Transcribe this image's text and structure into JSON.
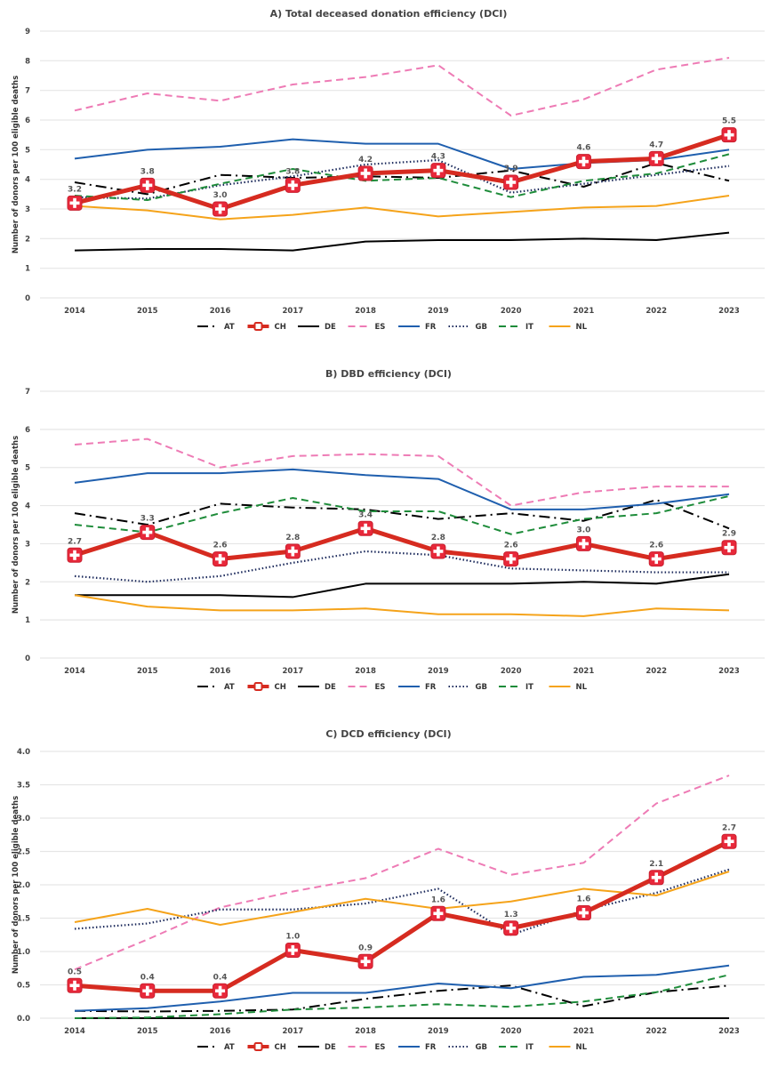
{
  "chart_data": [
    {
      "type": "line",
      "title": "A) Total deceased donation efficiency (DCI)",
      "ylabel": "Number of donors per 100 eligible deaths",
      "xlabel": "",
      "ylim": [
        0,
        9
      ],
      "yticks": [
        0,
        1,
        2,
        3,
        4,
        5,
        6,
        7,
        8,
        9
      ],
      "ytick_decimals": 0,
      "grid": true,
      "legend_position": "bottom",
      "x": [
        "2014",
        "2015",
        "2016",
        "2017",
        "2018",
        "2019",
        "2020",
        "2021",
        "2022",
        "2023"
      ],
      "series": [
        {
          "name": "AT",
          "color": "#000000",
          "style": "dashdot",
          "values": [
            3.9,
            3.5,
            4.15,
            4.05,
            4.1,
            4.05,
            4.3,
            3.75,
            4.55,
            3.95
          ]
        },
        {
          "name": "CH",
          "color": "#d62b20",
          "style": "bold-marker",
          "values": [
            3.2,
            3.8,
            3.0,
            3.8,
            4.2,
            4.3,
            3.9,
            4.6,
            4.7,
            5.5
          ],
          "data_labels": [
            "3.2",
            "3.8",
            "3.0",
            "3.8",
            "4.2",
            "4.3",
            "3.9",
            "4.6",
            "4.7",
            "5.5"
          ]
        },
        {
          "name": "DE",
          "color": "#000000",
          "style": "solid",
          "values": [
            1.6,
            1.65,
            1.65,
            1.6,
            1.9,
            1.95,
            1.95,
            2.0,
            1.95,
            2.2
          ]
        },
        {
          "name": "ES",
          "color": "#ee7bb5",
          "style": "dashed",
          "values": [
            6.32,
            6.9,
            6.65,
            7.2,
            7.45,
            7.85,
            6.15,
            6.7,
            7.7,
            8.1
          ]
        },
        {
          "name": "FR",
          "color": "#1f5fae",
          "style": "solid",
          "values": [
            4.7,
            5.0,
            5.1,
            5.35,
            5.2,
            5.2,
            4.35,
            4.55,
            4.65,
            5.0
          ]
        },
        {
          "name": "GB",
          "color": "#1c2a5c",
          "style": "dotted",
          "values": [
            3.4,
            3.35,
            3.8,
            4.1,
            4.5,
            4.65,
            3.55,
            3.85,
            4.15,
            4.45
          ]
        },
        {
          "name": "IT",
          "color": "#1e8c3a",
          "style": "dashed",
          "values": [
            3.45,
            3.3,
            3.85,
            4.35,
            3.95,
            4.05,
            3.4,
            3.95,
            4.2,
            4.85
          ]
        },
        {
          "name": "NL",
          "color": "#f5a31a",
          "style": "solid",
          "values": [
            3.1,
            2.95,
            2.65,
            2.8,
            3.05,
            2.75,
            2.9,
            3.05,
            3.1,
            3.45
          ]
        }
      ]
    },
    {
      "type": "line",
      "title": "B) DBD efficiency (DCI)",
      "ylabel": "Number of donors per 100 eligible deaths",
      "xlabel": "",
      "ylim": [
        0,
        7
      ],
      "yticks": [
        0,
        1,
        2,
        3,
        4,
        5,
        6,
        7
      ],
      "ytick_decimals": 0,
      "grid": true,
      "legend_position": "bottom",
      "x": [
        "2014",
        "2015",
        "2016",
        "2017",
        "2018",
        "2019",
        "2020",
        "2021",
        "2022",
        "2023"
      ],
      "series": [
        {
          "name": "AT",
          "color": "#000000",
          "style": "dashdot",
          "values": [
            3.8,
            3.5,
            4.05,
            3.95,
            3.9,
            3.65,
            3.8,
            3.6,
            4.15,
            3.4
          ]
        },
        {
          "name": "CH",
          "color": "#d62b20",
          "style": "bold-marker",
          "values": [
            2.7,
            3.3,
            2.6,
            2.8,
            3.4,
            2.8,
            2.6,
            3.0,
            2.6,
            2.9
          ],
          "data_labels": [
            "2.7",
            "3.3",
            "2.6",
            "2.8",
            "3.4",
            "2.8",
            "2.6",
            "3.0",
            "2.6",
            "2.9"
          ]
        },
        {
          "name": "DE",
          "color": "#000000",
          "style": "solid",
          "values": [
            1.65,
            1.65,
            1.65,
            1.6,
            1.95,
            1.95,
            1.95,
            2.0,
            1.95,
            2.2
          ]
        },
        {
          "name": "ES",
          "color": "#ee7bb5",
          "style": "dashed",
          "values": [
            5.6,
            5.75,
            5.0,
            5.3,
            5.35,
            5.3,
            4.0,
            4.35,
            4.5,
            4.5
          ]
        },
        {
          "name": "FR",
          "color": "#1f5fae",
          "style": "solid",
          "values": [
            4.6,
            4.85,
            4.85,
            4.95,
            4.8,
            4.7,
            3.9,
            3.9,
            4.05,
            4.3
          ]
        },
        {
          "name": "GB",
          "color": "#1c2a5c",
          "style": "dotted",
          "values": [
            2.15,
            2.0,
            2.15,
            2.5,
            2.8,
            2.7,
            2.35,
            2.3,
            2.25,
            2.25
          ]
        },
        {
          "name": "IT",
          "color": "#1e8c3a",
          "style": "dashed",
          "values": [
            3.5,
            3.3,
            3.8,
            4.2,
            3.85,
            3.85,
            3.25,
            3.65,
            3.8,
            4.25
          ]
        },
        {
          "name": "NL",
          "color": "#f5a31a",
          "style": "solid",
          "values": [
            1.65,
            1.35,
            1.25,
            1.25,
            1.3,
            1.15,
            1.15,
            1.1,
            1.3,
            1.25
          ]
        }
      ]
    },
    {
      "type": "line",
      "title": "C) DCD efficiency (DCI)",
      "ylabel": "Number of donors per 100 eligible deaths",
      "xlabel": "",
      "ylim": [
        0,
        4
      ],
      "yticks": [
        0,
        0.5,
        1,
        1.5,
        2,
        2.5,
        3,
        3.5,
        4
      ],
      "ytick_decimals": 1,
      "grid": true,
      "legend_position": "bottom",
      "x": [
        "2014",
        "2015",
        "2016",
        "2017",
        "2018",
        "2019",
        "2020",
        "2021",
        "2022",
        "2023"
      ],
      "series": [
        {
          "name": "AT",
          "color": "#000000",
          "style": "dashdot",
          "values": [
            0.11,
            0.1,
            0.11,
            0.13,
            0.29,
            0.41,
            0.49,
            0.18,
            0.39,
            0.49
          ]
        },
        {
          "name": "CH",
          "color": "#d62b20",
          "style": "bold-marker",
          "values": [
            0.49,
            0.41,
            0.41,
            1.02,
            0.85,
            1.57,
            1.35,
            1.58,
            2.11,
            2.65
          ],
          "data_labels": [
            "0.5",
            "0.4",
            "0.4",
            "1.0",
            "0.9",
            "1.6",
            "1.3",
            "1.6",
            "2.1",
            "2.7"
          ]
        },
        {
          "name": "DE",
          "color": "#000000",
          "style": "solid",
          "values": [
            0,
            0,
            0,
            0,
            0,
            0,
            0,
            0,
            0,
            0
          ]
        },
        {
          "name": "ES",
          "color": "#ee7bb5",
          "style": "dashed",
          "values": [
            0.73,
            1.18,
            1.66,
            1.9,
            2.1,
            2.54,
            2.15,
            2.33,
            3.22,
            3.64
          ]
        },
        {
          "name": "FR",
          "color": "#1f5fae",
          "style": "solid",
          "values": [
            0.11,
            0.15,
            0.25,
            0.38,
            0.38,
            0.52,
            0.45,
            0.62,
            0.65,
            0.79
          ]
        },
        {
          "name": "GB",
          "color": "#1c2a5c",
          "style": "dotted",
          "values": [
            1.34,
            1.42,
            1.63,
            1.63,
            1.72,
            1.94,
            1.25,
            1.62,
            1.88,
            2.23
          ]
        },
        {
          "name": "IT",
          "color": "#1e8c3a",
          "style": "dashed",
          "values": [
            0,
            0.01,
            0.06,
            0.13,
            0.16,
            0.21,
            0.17,
            0.25,
            0.39,
            0.65
          ]
        },
        {
          "name": "NL",
          "color": "#f5a31a",
          "style": "solid",
          "values": [
            1.44,
            1.64,
            1.4,
            1.59,
            1.79,
            1.64,
            1.75,
            1.94,
            1.84,
            2.2
          ]
        }
      ]
    }
  ]
}
